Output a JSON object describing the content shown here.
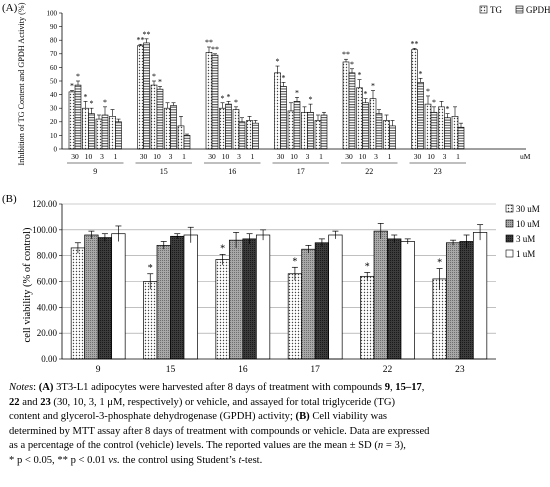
{
  "palette": {
    "fill_a": "#d8d8d8",
    "fill_b": "#9a9a9a",
    "fill_c": "#3a3a3a",
    "fill_d": "#ffffff",
    "stroke": "#000000"
  },
  "chart_data": [
    {
      "panel": "(A)",
      "type": "bar",
      "ylabel": "Inhibition of TG Content and GPDH Activity (%)",
      "ylim": [
        0,
        100
      ],
      "yticks": [
        0,
        10,
        20,
        30,
        40,
        50,
        60,
        70,
        80,
        90,
        100
      ],
      "grid": false,
      "legend_position": "top-right",
      "unit_label": "uM",
      "groups": [
        {
          "compound": "9",
          "doses": [
            "30",
            "10",
            "3",
            "1"
          ],
          "series": [
            {
              "name": "TG",
              "values": [
                42,
                30,
                22,
                24
              ],
              "errors": [
                1,
                5,
                3,
                5
              ],
              "stars": [
                "*",
                "*",
                "",
                ""
              ]
            },
            {
              "name": "GPDH",
              "values": [
                47,
                26,
                25,
                20
              ],
              "errors": [
                3,
                4,
                6,
                2
              ],
              "stars": [
                "*",
                "*",
                "*",
                ""
              ]
            }
          ]
        },
        {
          "compound": "15",
          "doses": [
            "30",
            "10",
            "3",
            "1"
          ],
          "series": [
            {
              "name": "TG",
              "values": [
                76,
                47,
                30,
                17
              ],
              "errors": [
                1,
                3,
                4,
                7
              ],
              "stars": [
                "**",
                "*",
                "",
                ""
              ]
            },
            {
              "name": "GPDH",
              "values": [
                78,
                44,
                32,
                10
              ],
              "errors": [
                3,
                2,
                2,
                1
              ],
              "stars": [
                "**",
                "*",
                "",
                ""
              ]
            }
          ]
        },
        {
          "compound": "16",
          "doses": [
            "30",
            "10",
            "3",
            "1"
          ],
          "series": [
            {
              "name": "TG",
              "values": [
                71,
                30,
                29,
                21
              ],
              "errors": [
                4,
                4,
                2,
                3
              ],
              "stars": [
                "**",
                "*",
                "*",
                ""
              ]
            },
            {
              "name": "GPDH",
              "values": [
                69,
                33,
                20,
                19
              ],
              "errors": [
                1,
                2,
                3,
                2
              ],
              "stars": [
                "**",
                "*",
                "",
                ""
              ]
            }
          ]
        },
        {
          "compound": "17",
          "doses": [
            "30",
            "10",
            "3",
            "1"
          ],
          "series": [
            {
              "name": "TG",
              "values": [
                56,
                28,
                27,
                21
              ],
              "errors": [
                5,
                6,
                4,
                4
              ],
              "stars": [
                "*",
                "",
                "",
                ""
              ]
            },
            {
              "name": "GPDH",
              "values": [
                46,
                35,
                27,
                25
              ],
              "errors": [
                3,
                3,
                6,
                2
              ],
              "stars": [
                "*",
                "*",
                "*",
                ""
              ]
            }
          ]
        },
        {
          "compound": "22",
          "doses": [
            "30",
            "10",
            "3",
            "1"
          ],
          "series": [
            {
              "name": "TG",
              "values": [
                64,
                45,
                37,
                21
              ],
              "errors": [
                2,
                6,
                6,
                4
              ],
              "stars": [
                "**",
                "*",
                "*",
                ""
              ]
            },
            {
              "name": "GPDH",
              "values": [
                56,
                34,
                26,
                17
              ],
              "errors": [
                3,
                3,
                3,
                4
              ],
              "stars": [
                "*",
                "*",
                "",
                ""
              ]
            }
          ]
        },
        {
          "compound": "23",
          "doses": [
            "30",
            "10",
            "3",
            "1"
          ],
          "series": [
            {
              "name": "TG",
              "values": [
                73,
                33,
                31,
                24
              ],
              "errors": [
                1,
                6,
                4,
                7
              ],
              "stars": [
                "**",
                "*",
                "",
                ""
              ]
            },
            {
              "name": "GPDH",
              "values": [
                49,
                27,
                23,
                16
              ],
              "errors": [
                3,
                4,
                3,
                3
              ],
              "stars": [
                "*",
                "*",
                "*",
                ""
              ]
            }
          ]
        }
      ]
    },
    {
      "panel": "(B)",
      "type": "bar",
      "ylabel": "cell viability (% of control)",
      "ylim": [
        0,
        120
      ],
      "yticks": [
        "0.00",
        "20.00",
        "40.00",
        "60.00",
        "80.00",
        "100.00",
        "120.00"
      ],
      "grid": true,
      "legend_position": "right",
      "categories": [
        "9",
        "15",
        "16",
        "17",
        "22",
        "23"
      ],
      "series": [
        {
          "name": "30 uM",
          "values": [
            86,
            60,
            77,
            66,
            64,
            62
          ],
          "errors": [
            4,
            6,
            4,
            5,
            3,
            8
          ],
          "stars": [
            "",
            "*",
            "*",
            "*",
            "*",
            "*"
          ]
        },
        {
          "name": "10 uM",
          "values": [
            96,
            88,
            92,
            85,
            99,
            90
          ],
          "errors": [
            3,
            3,
            6,
            3,
            6,
            2
          ],
          "stars": [
            "",
            "",
            "",
            "",
            "",
            ""
          ]
        },
        {
          "name": "3 uM",
          "values": [
            94,
            95,
            93,
            90,
            93,
            91
          ],
          "errors": [
            3,
            2,
            4,
            3,
            3,
            5
          ],
          "stars": [
            "",
            "",
            "",
            "",
            "",
            ""
          ]
        },
        {
          "name": "1 uM",
          "values": [
            97,
            96,
            96,
            96,
            91,
            98
          ],
          "errors": [
            6,
            6,
            4,
            3,
            2,
            6
          ],
          "stars": [
            "",
            "",
            "",
            "",
            "",
            ""
          ]
        }
      ]
    }
  ],
  "notes": {
    "label": "Notes",
    "lines": [
      [
        {
          "t": "Notes",
          "s": "i"
        },
        {
          "t": ": "
        },
        {
          "t": "(A)",
          "s": "b"
        },
        {
          "t": " 3T3-L1 adipocytes were harvested after 8 days of treatment with compounds "
        },
        {
          "t": "9",
          "s": "b"
        },
        {
          "t": ", "
        },
        {
          "t": "15–17",
          "s": "b"
        },
        {
          "t": ","
        }
      ],
      [
        {
          "t": "22",
          "s": "b"
        },
        {
          "t": " and "
        },
        {
          "t": "23",
          "s": "b"
        },
        {
          "t": " (30, 10, 3, 1 μM, respectively) or vehicle, and assayed for total triglyceride (TG)"
        }
      ],
      [
        {
          "t": "content and glycerol-3-phosphate dehydrogenase (GPDH) activity; "
        },
        {
          "t": "(B)",
          "s": "b"
        },
        {
          "t": " Cell viability was"
        }
      ],
      [
        {
          "t": "determined by MTT assay after 8 days of treatment with compounds or vehicle. Data are expressed"
        }
      ],
      [
        {
          "t": "as a percentage of the control (vehicle) levels. The reported values are the mean ± SD ("
        },
        {
          "t": "n",
          "s": "i"
        },
        {
          "t": " = 3),"
        }
      ],
      [
        {
          "t": "* p < 0.05, ** p < 0.01 "
        },
        {
          "t": "vs.",
          "s": "i"
        },
        {
          "t": " the control using Student’s "
        },
        {
          "t": "t",
          "s": "i"
        },
        {
          "t": "-test."
        }
      ]
    ]
  }
}
